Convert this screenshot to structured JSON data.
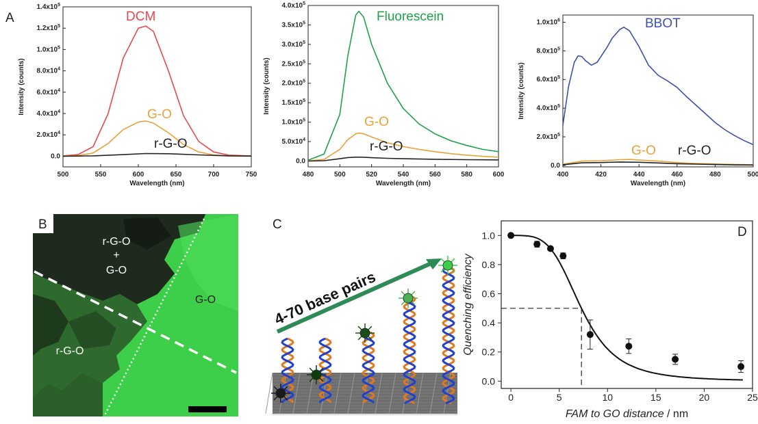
{
  "panel_letters": {
    "a": "A",
    "b": "B",
    "c": "C",
    "d": "D"
  },
  "colors": {
    "dcm": "#e8474b",
    "fluorescein": "#20a04a",
    "bbot": "#3d4fb0",
    "go": "#e9a23b",
    "rgo": "#222222",
    "micro_bg": "#3ecf4a",
    "arrow": "#2e8b57"
  },
  "chart_data": [
    {
      "type": "line",
      "panel": "A-left",
      "title": "DCM",
      "xlabel": "Wavelength (nm)",
      "ylabel": "Intensity (counts)",
      "xlim": [
        500,
        750
      ],
      "ylim": [
        -10000,
        140000
      ],
      "xticks": [
        "500",
        "550",
        "600",
        "650",
        "700",
        "750"
      ],
      "yticks": [
        {
          "base": "0.0",
          "exp": ""
        },
        {
          "base": "2.0x10",
          "exp": "4"
        },
        {
          "base": "4.0x10",
          "exp": "4"
        },
        {
          "base": "6.0x10",
          "exp": "4"
        },
        {
          "base": "8.0x10",
          "exp": "4"
        },
        {
          "base": "1.0x10",
          "exp": "5"
        },
        {
          "base": "1.2x10",
          "exp": "5"
        },
        {
          "base": "1.4x10",
          "exp": "5"
        }
      ],
      "ytick_values": [
        0,
        20000,
        40000,
        60000,
        80000,
        100000,
        120000,
        140000
      ],
      "labels": [
        {
          "text": "G-O",
          "series": 1
        },
        {
          "text": "r-G-O",
          "series": 2
        }
      ],
      "series": [
        {
          "x": [
            500,
            520,
            540,
            560,
            580,
            600,
            610,
            620,
            640,
            660,
            680,
            700,
            720,
            750
          ],
          "y": [
            300,
            1500,
            9000,
            40000,
            92000,
            120000,
            122000,
            117000,
            80000,
            38000,
            14000,
            4000,
            1000,
            200
          ]
        },
        {
          "x": [
            500,
            520,
            540,
            560,
            580,
            600,
            610,
            620,
            640,
            660,
            680,
            700,
            720,
            750
          ],
          "y": [
            100,
            500,
            3000,
            12000,
            25000,
            32000,
            33000,
            31000,
            22000,
            11000,
            4000,
            1200,
            300,
            100
          ]
        },
        {
          "x": [
            500,
            540,
            580,
            610,
            640,
            680,
            720,
            750
          ],
          "y": [
            0,
            300,
            1500,
            2500,
            2300,
            1200,
            300,
            100
          ]
        }
      ]
    },
    {
      "type": "line",
      "panel": "A-middle",
      "title": "Fluorescein",
      "xlabel": "Wavelength (nm)",
      "ylabel": "Intensity (counts)",
      "xlim": [
        480,
        600
      ],
      "ylim": [
        -15000,
        400000
      ],
      "xticks": [
        "480",
        "500",
        "520",
        "540",
        "560",
        "580",
        "600"
      ],
      "yticks": [
        {
          "base": "0.0",
          "exp": ""
        },
        {
          "base": "5.0x10",
          "exp": "4"
        },
        {
          "base": "1.0x10",
          "exp": "5"
        },
        {
          "base": "1.5x10",
          "exp": "5"
        },
        {
          "base": "2.0x10",
          "exp": "5"
        },
        {
          "base": "2.5x10",
          "exp": "5"
        },
        {
          "base": "3.0x10",
          "exp": "5"
        },
        {
          "base": "3.5x10",
          "exp": "5"
        },
        {
          "base": "4.0x10",
          "exp": "5"
        }
      ],
      "ytick_values": [
        0,
        50000,
        100000,
        150000,
        200000,
        250000,
        300000,
        350000,
        400000
      ],
      "labels": [
        {
          "text": "G-O",
          "series": 1
        },
        {
          "text": "r-G-O",
          "series": 2
        }
      ],
      "series": [
        {
          "x": [
            480,
            490,
            500,
            505,
            510,
            512,
            515,
            520,
            530,
            540,
            550,
            560,
            570,
            580,
            590,
            600
          ],
          "y": [
            2000,
            18000,
            120000,
            270000,
            375000,
            385000,
            370000,
            300000,
            200000,
            135000,
            95000,
            70000,
            52000,
            40000,
            30000,
            24000
          ]
        },
        {
          "x": [
            480,
            490,
            500,
            505,
            510,
            512,
            515,
            520,
            530,
            540,
            550,
            560,
            570,
            580,
            590,
            600
          ],
          "y": [
            500,
            4000,
            30000,
            55000,
            70000,
            72000,
            70000,
            62000,
            47000,
            37000,
            30000,
            24000,
            19000,
            15000,
            12000,
            10000
          ]
        },
        {
          "x": [
            480,
            490,
            500,
            505,
            510,
            512,
            515,
            520,
            530,
            540,
            560,
            580,
            600
          ],
          "y": [
            0,
            800,
            6000,
            9000,
            10000,
            10000,
            9800,
            8500,
            7000,
            6000,
            4500,
            3500,
            3000
          ]
        }
      ]
    },
    {
      "type": "line",
      "panel": "A-right",
      "title": "BBOT",
      "xlabel": "Wavelength (nm)",
      "ylabel": "Intensity (counts)",
      "xlim": [
        400,
        500
      ],
      "ylim": [
        -10000,
        1050000
      ],
      "xticks": [
        "400",
        "420",
        "440",
        "460",
        "480",
        "500"
      ],
      "yticks": [
        {
          "base": "0.0",
          "exp": ""
        },
        {
          "base": "2.0x10",
          "exp": "5"
        },
        {
          "base": "4.0x10",
          "exp": "5"
        },
        {
          "base": "6.0x10",
          "exp": "5"
        },
        {
          "base": "8.0x10",
          "exp": "5"
        },
        {
          "base": "1.0x10",
          "exp": "6"
        }
      ],
      "ytick_values": [
        0,
        200000,
        400000,
        600000,
        800000,
        1000000
      ],
      "labels": [
        {
          "text": "G-O",
          "series": 1
        },
        {
          "text": "r-G-O",
          "series": 2
        }
      ],
      "series": [
        {
          "x": [
            400,
            403,
            406,
            408,
            410,
            412,
            415,
            418,
            420,
            423,
            426,
            430,
            432,
            435,
            440,
            445,
            450,
            455,
            460,
            465,
            470,
            475,
            480,
            485,
            490,
            495,
            500
          ],
          "y": [
            280000,
            550000,
            720000,
            765000,
            760000,
            730000,
            700000,
            720000,
            760000,
            820000,
            890000,
            950000,
            965000,
            940000,
            830000,
            700000,
            630000,
            590000,
            545000,
            480000,
            420000,
            360000,
            300000,
            250000,
            210000,
            175000,
            145000
          ]
        },
        {
          "x": [
            400,
            410,
            420,
            430,
            435,
            440,
            450,
            460,
            470,
            480,
            490,
            500
          ],
          "y": [
            8000,
            30000,
            33000,
            40000,
            42000,
            38000,
            30000,
            20000,
            14000,
            10000,
            7000,
            5000
          ]
        },
        {
          "x": [
            400,
            410,
            420,
            430,
            440,
            450,
            460,
            470,
            480,
            490,
            500
          ],
          "y": [
            5000,
            18000,
            20000,
            24000,
            22000,
            17000,
            12000,
            9000,
            6000,
            4000,
            3000
          ]
        }
      ]
    },
    {
      "type": "scatter",
      "panel": "D",
      "xlabel_italic": "FAM to GO distance",
      "xlabel_unit": " / nm",
      "ylabel": "Quenching efficiency",
      "xlim": [
        -1,
        25
      ],
      "ylim": [
        -0.05,
        1.1
      ],
      "xticks": [
        0,
        5,
        10,
        15,
        20,
        25
      ],
      "yticks": [
        "0.0",
        "0.2",
        "0.4",
        "0.6",
        "0.8",
        "1.0"
      ],
      "ytick_values": [
        0,
        0.2,
        0.4,
        0.6,
        0.8,
        1.0
      ],
      "points": [
        {
          "x": 0,
          "y": 1.0,
          "err": 0
        },
        {
          "x": 2.7,
          "y": 0.94,
          "err": 0.02
        },
        {
          "x": 4.1,
          "y": 0.91,
          "err": 0
        },
        {
          "x": 5.4,
          "y": 0.86,
          "err": 0.02
        },
        {
          "x": 8.2,
          "y": 0.32,
          "err": 0.1
        },
        {
          "x": 12.2,
          "y": 0.24,
          "err": 0.05
        },
        {
          "x": 17.0,
          "y": 0.15,
          "err": 0.035
        },
        {
          "x": 23.8,
          "y": 0.1,
          "err": 0.04
        }
      ],
      "fit_midpoint": 7.3,
      "fit_level": 0.5
    }
  ],
  "micrograph": {
    "label_top_1": "r-G-O",
    "label_top_2": "+",
    "label_top_3": "G-O",
    "label_right": "G-O",
    "label_left": "r-G-O"
  },
  "schematic": {
    "arrow_text": "4-70 base pairs"
  }
}
